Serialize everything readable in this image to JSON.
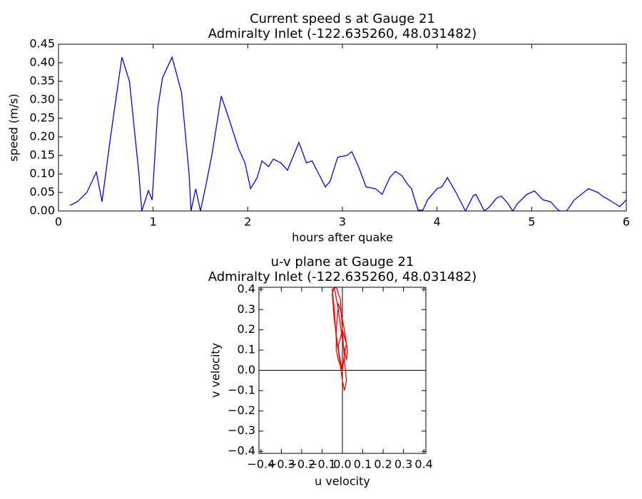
{
  "chart_data": [
    {
      "type": "line",
      "title": "Current speed s at Gauge 21",
      "subtitle": "Admiralty Inlet  (-122.635260, 48.031482)",
      "xlabel": "hours after quake",
      "ylabel": "speed (m/s)",
      "xlim": [
        0,
        6
      ],
      "xticks": [
        0,
        1,
        2,
        3,
        4,
        5,
        6
      ],
      "ylim": [
        0,
        0.45
      ],
      "yticks": [
        {
          "value": 0,
          "label": "0.00"
        },
        0.05,
        {
          "value": 0.1,
          "label": "0.10"
        },
        0.15,
        {
          "value": 0.2,
          "label": "0.20"
        },
        0.25,
        {
          "value": 0.3,
          "label": "0.30"
        },
        0.35,
        {
          "value": 0.4,
          "label": "0.40"
        },
        0.45
      ],
      "x": [
        0.12,
        0.2,
        0.3,
        0.4,
        0.46,
        0.55,
        0.67,
        0.75,
        0.85,
        0.88,
        0.95,
        0.99,
        1.05,
        1.1,
        1.2,
        1.3,
        1.38,
        1.4,
        1.45,
        1.5,
        1.55,
        1.62,
        1.72,
        1.8,
        1.9,
        1.97,
        2.03,
        2.1,
        2.15,
        2.22,
        2.27,
        2.35,
        2.42,
        2.54,
        2.62,
        2.68,
        2.75,
        2.82,
        2.87,
        2.95,
        3.05,
        3.1,
        3.17,
        3.25,
        3.35,
        3.42,
        3.5,
        3.56,
        3.63,
        3.68,
        3.73,
        3.8,
        3.85,
        3.9,
        4.0,
        4.05,
        4.11,
        4.2,
        4.3,
        4.38,
        4.41,
        4.5,
        4.55,
        4.63,
        4.68,
        4.75,
        4.8,
        4.85,
        4.95,
        5.03,
        5.12,
        5.2,
        5.27,
        5.3,
        5.37,
        5.45,
        5.6,
        5.7,
        5.75,
        5.85,
        5.93,
        6.0
      ],
      "series": [
        {
          "color": "#0000ff",
          "values": [
            0.015,
            0.025,
            0.05,
            0.105,
            0.025,
            0.2,
            0.415,
            0.35,
            0.1,
            0.0,
            0.055,
            0.03,
            0.28,
            0.36,
            0.415,
            0.32,
            0.1,
            0.0,
            0.06,
            0.0,
            0.06,
            0.15,
            0.31,
            0.25,
            0.17,
            0.13,
            0.06,
            0.09,
            0.135,
            0.12,
            0.14,
            0.13,
            0.11,
            0.185,
            0.13,
            0.135,
            0.1,
            0.065,
            0.08,
            0.145,
            0.15,
            0.16,
            0.12,
            0.065,
            0.06,
            0.045,
            0.09,
            0.107,
            0.095,
            0.075,
            0.06,
            0.002,
            0.002,
            0.03,
            0.06,
            0.065,
            0.09,
            0.05,
            0.0,
            0.04,
            0.045,
            0.0,
            0.01,
            0.035,
            0.04,
            0.02,
            0.0,
            0.02,
            0.045,
            0.054,
            0.03,
            0.025,
            0.005,
            0.0,
            0.0,
            0.03,
            0.06,
            0.05,
            0.04,
            0.025,
            0.012,
            0.03
          ]
        }
      ]
    },
    {
      "type": "line",
      "title": "u-v plane at Gauge 21",
      "subtitle": "Admiralty Inlet  (-122.635260, 48.031482)",
      "xlabel": "u velocity",
      "ylabel": "v velocity",
      "zero_lines": true,
      "xlim": [
        -0.41,
        0.41
      ],
      "xticks": [
        {
          "value": -0.4,
          "label": "−0.4"
        },
        {
          "value": -0.3,
          "label": "−0.3"
        },
        {
          "value": -0.2,
          "label": "−0.2"
        },
        {
          "value": -0.1,
          "label": "−0.1"
        },
        {
          "value": 0,
          "label": "0.0"
        },
        0.1,
        0.2,
        0.3,
        0.4
      ],
      "ylim": [
        -0.41,
        0.41
      ],
      "yticks": [
        {
          "value": -0.4,
          "label": "−0.4"
        },
        {
          "value": -0.3,
          "label": "−0.3"
        },
        {
          "value": -0.2,
          "label": "−0.2"
        },
        {
          "value": -0.1,
          "label": "−0.1"
        },
        {
          "value": 0,
          "label": "0.0"
        },
        0.1,
        0.2,
        0.3,
        0.4
      ],
      "x": [
        0.0,
        -0.01,
        -0.03,
        -0.04,
        -0.05,
        -0.03,
        -0.01,
        0.0,
        0.01,
        0.02,
        0.01,
        0.0,
        -0.02,
        -0.04,
        -0.05,
        -0.04,
        -0.02,
        0.0,
        0.02,
        0.025,
        0.01,
        -0.01,
        -0.02,
        -0.03,
        -0.03,
        -0.02,
        0.0,
        0.01,
        0.02,
        0.0,
        -0.02,
        -0.01,
        0.0
      ],
      "series": [
        {
          "color": "#ff0000",
          "values": [
            0.0,
            0.05,
            0.15,
            0.3,
            0.4,
            0.41,
            0.35,
            0.2,
            0.05,
            -0.05,
            -0.1,
            -0.05,
            0.1,
            0.25,
            0.38,
            0.41,
            0.3,
            0.15,
            0.05,
            0.1,
            0.2,
            0.3,
            0.33,
            0.2,
            0.1,
            0.05,
            0.0,
            0.08,
            0.13,
            0.2,
            0.12,
            0.02,
            0.0
          ]
        }
      ]
    }
  ]
}
